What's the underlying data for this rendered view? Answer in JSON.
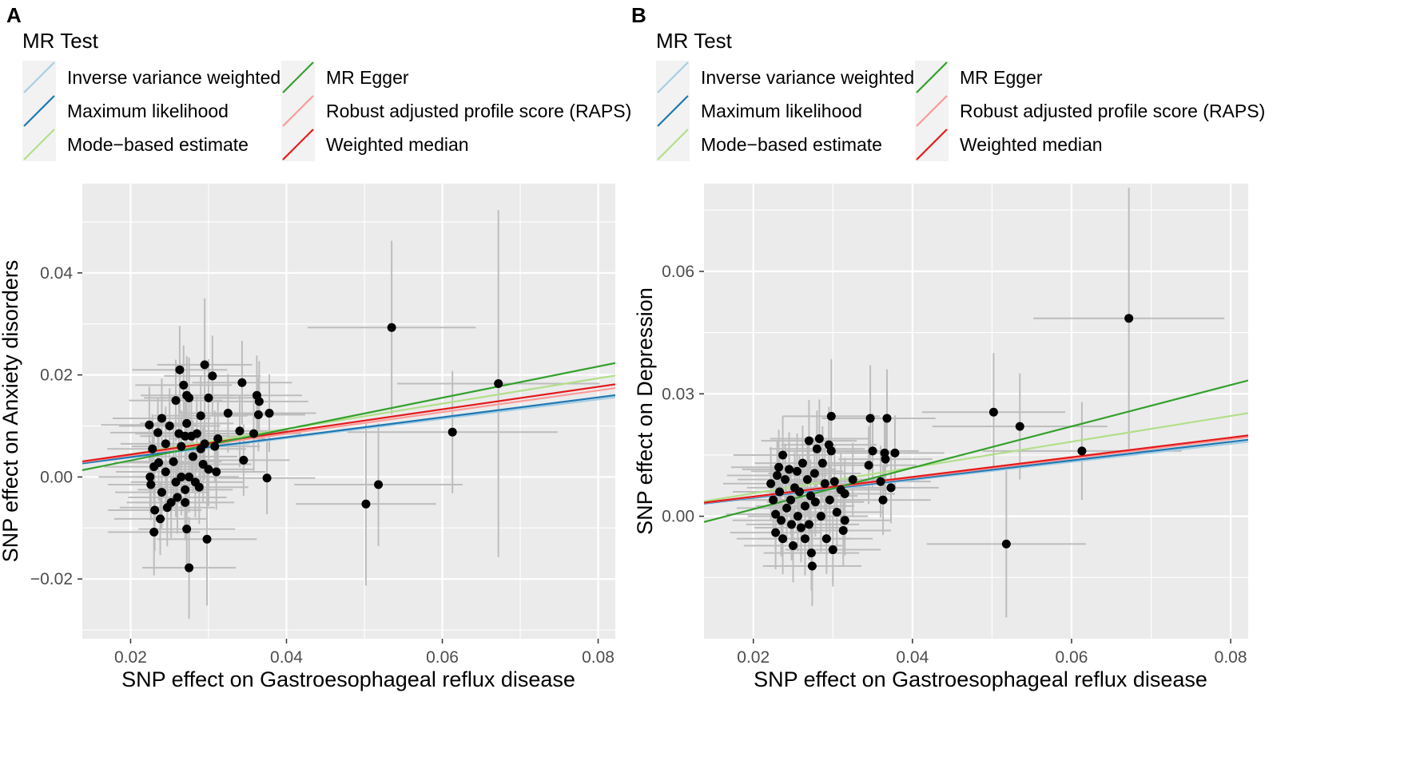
{
  "legend": {
    "title": "MR Test",
    "items": [
      {
        "label": "Inverse variance weighted",
        "color": "#a6cee3"
      },
      {
        "label": "Maximum likelihood",
        "color": "#1f78b4"
      },
      {
        "label": "Mode−based estimate",
        "color": "#b2df8a"
      },
      {
        "label": "MR Egger",
        "color": "#33a02c"
      },
      {
        "label": "Robust adjusted profile score (RAPS)",
        "color": "#fb9a99"
      },
      {
        "label": "Weighted median",
        "color": "#e31a1c"
      }
    ]
  },
  "colors": {
    "panel_bg": "#ebebeb",
    "grid": "#ffffff",
    "errorbar": "#bdbdbd",
    "point": "#000000"
  },
  "chart_data": [
    {
      "type": "scatter",
      "panel_label": "A",
      "xlabel": "SNP effect on Gastroesophageal reflux disease",
      "ylabel": "SNP effect on Anxiety disorders",
      "xlim": [
        0.0138,
        0.0822
      ],
      "ylim": [
        -0.0317,
        0.0575
      ],
      "xticks": [
        0.02,
        0.04,
        0.06,
        0.08
      ],
      "xtick_labels": [
        "0.02",
        "0.04",
        "0.06",
        "0.08"
      ],
      "yticks": [
        -0.02,
        0.0,
        0.02,
        0.04
      ],
      "ytick_labels": [
        "−0.02",
        "0.00",
        "0.02",
        "0.04"
      ],
      "lines": [
        {
          "method": "Inverse variance weighted",
          "slope": 0.19,
          "intercept": 0.0
        },
        {
          "method": "Maximum likelihood",
          "slope": 0.195,
          "intercept": 0.0
        },
        {
          "method": "Mode−based estimate",
          "slope": 0.248,
          "intercept": -0.0005
        },
        {
          "method": "MR Egger",
          "slope": 0.307,
          "intercept": -0.0029
        },
        {
          "method": "Robust adjusted profile score (RAPS)",
          "slope": 0.212,
          "intercept": 0.0
        },
        {
          "method": "Weighted median",
          "slope": 0.221,
          "intercept": 0.0
        }
      ],
      "points": [
        {
          "x": 0.0224,
          "y": 0.0102,
          "xse": 0.0062,
          "yse": 0.0075
        },
        {
          "x": 0.0228,
          "y": 0.0055,
          "xse": 0.0058,
          "yse": 0.0068
        },
        {
          "x": 0.023,
          "y": 0.002,
          "xse": 0.0064,
          "yse": 0.0072
        },
        {
          "x": 0.0226,
          "y": -0.0015,
          "xse": 0.0055,
          "yse": 0.007
        },
        {
          "x": 0.0231,
          "y": -0.0065,
          "xse": 0.006,
          "yse": 0.008
        },
        {
          "x": 0.023,
          "y": -0.0108,
          "xse": 0.0059,
          "yse": 0.0085
        },
        {
          "x": 0.0225,
          "y": 0.0,
          "xse": 0.0066,
          "yse": 0.0071
        },
        {
          "x": 0.0235,
          "y": 0.0087,
          "xse": 0.0061,
          "yse": 0.0069
        },
        {
          "x": 0.0236,
          "y": 0.0028,
          "xse": 0.0057,
          "yse": 0.0074
        },
        {
          "x": 0.024,
          "y": 0.0115,
          "xse": 0.0063,
          "yse": 0.0078
        },
        {
          "x": 0.024,
          "y": -0.003,
          "xse": 0.006,
          "yse": 0.007
        },
        {
          "x": 0.0245,
          "y": 0.0065,
          "xse": 0.0058,
          "yse": 0.0073
        },
        {
          "x": 0.0245,
          "y": 0.001,
          "xse": 0.0064,
          "yse": 0.0069
        },
        {
          "x": 0.0247,
          "y": -0.006,
          "xse": 0.0061,
          "yse": 0.0076
        },
        {
          "x": 0.0238,
          "y": -0.0082,
          "xse": 0.0059,
          "yse": 0.0071
        },
        {
          "x": 0.025,
          "y": 0.01,
          "xse": 0.0065,
          "yse": 0.0074
        },
        {
          "x": 0.0252,
          "y": -0.005,
          "xse": 0.0057,
          "yse": 0.007
        },
        {
          "x": 0.0255,
          "y": 0.003,
          "xse": 0.0062,
          "yse": 0.0072
        },
        {
          "x": 0.0258,
          "y": 0.015,
          "xse": 0.006,
          "yse": 0.008
        },
        {
          "x": 0.0258,
          "y": -0.001,
          "xse": 0.0058,
          "yse": 0.0068
        },
        {
          "x": 0.026,
          "y": -0.004,
          "xse": 0.0063,
          "yse": 0.0071
        },
        {
          "x": 0.0263,
          "y": 0.021,
          "xse": 0.0061,
          "yse": 0.0086
        },
        {
          "x": 0.0262,
          "y": 0.0085,
          "xse": 0.0056,
          "yse": 0.0073
        },
        {
          "x": 0.0265,
          "y": 0.006,
          "xse": 0.0064,
          "yse": 0.007
        },
        {
          "x": 0.0265,
          "y": 0.0,
          "xse": 0.006,
          "yse": 0.0075
        },
        {
          "x": 0.0268,
          "y": 0.018,
          "xse": 0.0062,
          "yse": 0.0078
        },
        {
          "x": 0.027,
          "y": 0.008,
          "xse": 0.0058,
          "yse": 0.007
        },
        {
          "x": 0.027,
          "y": -0.0025,
          "xse": 0.0061,
          "yse": 0.0072
        },
        {
          "x": 0.027,
          "y": -0.005,
          "xse": 0.0063,
          "yse": 0.0074
        },
        {
          "x": 0.0272,
          "y": 0.016,
          "xse": 0.0059,
          "yse": 0.0077
        },
        {
          "x": 0.0272,
          "y": 0.0105,
          "xse": 0.006,
          "yse": 0.0072
        },
        {
          "x": 0.0272,
          "y": -0.0102,
          "xse": 0.0062,
          "yse": 0.0081
        },
        {
          "x": 0.0275,
          "y": 0.0155,
          "xse": 0.0058,
          "yse": 0.0079
        },
        {
          "x": 0.0275,
          "y": 0.0,
          "xse": 0.0064,
          "yse": 0.007
        },
        {
          "x": 0.0275,
          "y": -0.0178,
          "xse": 0.006,
          "yse": 0.01
        },
        {
          "x": 0.0278,
          "y": 0.008,
          "xse": 0.0061,
          "yse": 0.0073
        },
        {
          "x": 0.028,
          "y": 0.004,
          "xse": 0.0057,
          "yse": 0.0071
        },
        {
          "x": 0.0283,
          "y": -0.001,
          "xse": 0.0062,
          "yse": 0.0069
        },
        {
          "x": 0.0285,
          "y": 0.0085,
          "xse": 0.0059,
          "yse": 0.0075
        },
        {
          "x": 0.0288,
          "y": -0.002,
          "xse": 0.0063,
          "yse": 0.0072
        },
        {
          "x": 0.029,
          "y": 0.012,
          "xse": 0.006,
          "yse": 0.0078
        },
        {
          "x": 0.029,
          "y": 0.0055,
          "xse": 0.0058,
          "yse": 0.007
        },
        {
          "x": 0.0293,
          "y": 0.0025,
          "xse": 0.0062,
          "yse": 0.0073
        },
        {
          "x": 0.0295,
          "y": 0.022,
          "xse": 0.0061,
          "yse": 0.013
        },
        {
          "x": 0.0295,
          "y": 0.0065,
          "xse": 0.0057,
          "yse": 0.0071
        },
        {
          "x": 0.0298,
          "y": -0.0122,
          "xse": 0.0064,
          "yse": 0.013
        },
        {
          "x": 0.03,
          "y": 0.0155,
          "xse": 0.006,
          "yse": 0.0076
        },
        {
          "x": 0.03,
          "y": 0.0015,
          "xse": 0.0059,
          "yse": 0.0072
        },
        {
          "x": 0.0305,
          "y": 0.0198,
          "xse": 0.0062,
          "yse": 0.0079
        },
        {
          "x": 0.0308,
          "y": 0.006,
          "xse": 0.0058,
          "yse": 0.007
        },
        {
          "x": 0.031,
          "y": 0.001,
          "xse": 0.0063,
          "yse": 0.0074
        },
        {
          "x": 0.0312,
          "y": 0.0075,
          "xse": 0.0061,
          "yse": 0.0072
        },
        {
          "x": 0.0325,
          "y": 0.0125,
          "xse": 0.006,
          "yse": 0.0077
        },
        {
          "x": 0.034,
          "y": 0.009,
          "xse": 0.0062,
          "yse": 0.0071
        },
        {
          "x": 0.0343,
          "y": 0.0185,
          "xse": 0.0064,
          "yse": 0.0082
        },
        {
          "x": 0.0345,
          "y": 0.0033,
          "xse": 0.0059,
          "yse": 0.007
        },
        {
          "x": 0.0358,
          "y": 0.0085,
          "xse": 0.0061,
          "yse": 0.0073
        },
        {
          "x": 0.0362,
          "y": 0.016,
          "xse": 0.0058,
          "yse": 0.0078
        },
        {
          "x": 0.0364,
          "y": 0.0122,
          "xse": 0.006,
          "yse": 0.0072
        },
        {
          "x": 0.0365,
          "y": 0.0148,
          "xse": 0.0063,
          "yse": 0.0079
        },
        {
          "x": 0.0375,
          "y": -0.0002,
          "xse": 0.0062,
          "yse": 0.0071
        },
        {
          "x": 0.0378,
          "y": 0.0125,
          "xse": 0.006,
          "yse": 0.0076
        },
        {
          "x": 0.0502,
          "y": -0.0053,
          "xse": 0.009,
          "yse": 0.016
        },
        {
          "x": 0.0518,
          "y": -0.0015,
          "xse": 0.0108,
          "yse": 0.012
        },
        {
          "x": 0.0535,
          "y": 0.0293,
          "xse": 0.0108,
          "yse": 0.017
        },
        {
          "x": 0.0613,
          "y": 0.0088,
          "xse": 0.0135,
          "yse": 0.012
        },
        {
          "x": 0.0672,
          "y": 0.0183,
          "xse": 0.013,
          "yse": 0.034
        }
      ]
    },
    {
      "type": "scatter",
      "panel_label": "B",
      "xlabel": "SNP effect on Gastroesophageal reflux disease",
      "ylabel": "SNP effect on Depression",
      "xlim": [
        0.0138,
        0.0822
      ],
      "ylim": [
        -0.03,
        0.0815
      ],
      "xticks": [
        0.02,
        0.04,
        0.06,
        0.08
      ],
      "xtick_labels": [
        "0.02",
        "0.04",
        "0.06",
        "0.08"
      ],
      "yticks": [
        0.0,
        0.03,
        0.06
      ],
      "ytick_labels": [
        "0.00",
        "0.03",
        "0.06"
      ],
      "lines": [
        {
          "method": "Inverse variance weighted",
          "slope": 0.222,
          "intercept": 0.0
        },
        {
          "method": "Maximum likelihood",
          "slope": 0.228,
          "intercept": 0.0
        },
        {
          "method": "Mode−based estimate",
          "slope": 0.316,
          "intercept": -0.0007
        },
        {
          "method": "MR Egger",
          "slope": 0.507,
          "intercept": -0.0084
        },
        {
          "method": "Robust adjusted profile score (RAPS)",
          "slope": 0.236,
          "intercept": 0.0
        },
        {
          "method": "Weighted median",
          "slope": 0.241,
          "intercept": 0.0
        }
      ],
      "points": [
        {
          "x": 0.0222,
          "y": 0.008,
          "xse": 0.006,
          "yse": 0.009
        },
        {
          "x": 0.0225,
          "y": 0.004,
          "xse": 0.0058,
          "yse": 0.0085
        },
        {
          "x": 0.0228,
          "y": 0.0005,
          "xse": 0.0062,
          "yse": 0.0088
        },
        {
          "x": 0.0228,
          "y": -0.004,
          "xse": 0.0057,
          "yse": 0.009
        },
        {
          "x": 0.023,
          "y": 0.01,
          "xse": 0.0063,
          "yse": 0.0086
        },
        {
          "x": 0.0232,
          "y": 0.012,
          "xse": 0.006,
          "yse": 0.0092
        },
        {
          "x": 0.0233,
          "y": 0.006,
          "xse": 0.0059,
          "yse": 0.0084
        },
        {
          "x": 0.0235,
          "y": -0.001,
          "xse": 0.0061,
          "yse": 0.0089
        },
        {
          "x": 0.0237,
          "y": 0.015,
          "xse": 0.0062,
          "yse": 0.0095
        },
        {
          "x": 0.0237,
          "y": -0.0055,
          "xse": 0.0058,
          "yse": 0.0087
        },
        {
          "x": 0.024,
          "y": 0.009,
          "xse": 0.006,
          "yse": 0.0088
        },
        {
          "x": 0.0242,
          "y": 0.002,
          "xse": 0.0063,
          "yse": 0.0086
        },
        {
          "x": 0.0245,
          "y": 0.0115,
          "xse": 0.0059,
          "yse": 0.0091
        },
        {
          "x": 0.0247,
          "y": 0.004,
          "xse": 0.0061,
          "yse": 0.0085
        },
        {
          "x": 0.0248,
          "y": -0.002,
          "xse": 0.0057,
          "yse": 0.0088
        },
        {
          "x": 0.025,
          "y": -0.0072,
          "xse": 0.0062,
          "yse": 0.009
        },
        {
          "x": 0.0252,
          "y": 0.007,
          "xse": 0.006,
          "yse": 0.0087
        },
        {
          "x": 0.0255,
          "y": 0.011,
          "xse": 0.0058,
          "yse": 0.0093
        },
        {
          "x": 0.0256,
          "y": 0.0,
          "xse": 0.0063,
          "yse": 0.0086
        },
        {
          "x": 0.0258,
          "y": 0.006,
          "xse": 0.0061,
          "yse": 0.0088
        },
        {
          "x": 0.026,
          "y": -0.0028,
          "xse": 0.0059,
          "yse": 0.0085
        },
        {
          "x": 0.0262,
          "y": 0.013,
          "xse": 0.006,
          "yse": 0.0092
        },
        {
          "x": 0.0265,
          "y": 0.0025,
          "xse": 0.0062,
          "yse": 0.0087
        },
        {
          "x": 0.0265,
          "y": -0.0055,
          "xse": 0.0058,
          "yse": 0.009
        },
        {
          "x": 0.0268,
          "y": 0.009,
          "xse": 0.0061,
          "yse": 0.0088
        },
        {
          "x": 0.027,
          "y": 0.0185,
          "xse": 0.006,
          "yse": 0.01
        },
        {
          "x": 0.027,
          "y": -0.002,
          "xse": 0.0063,
          "yse": 0.0086
        },
        {
          "x": 0.0272,
          "y": 0.005,
          "xse": 0.0059,
          "yse": 0.0089
        },
        {
          "x": 0.0273,
          "y": -0.009,
          "xse": 0.006,
          "yse": 0.0092
        },
        {
          "x": 0.0274,
          "y": -0.0122,
          "xse": 0.0062,
          "yse": 0.0098
        },
        {
          "x": 0.0277,
          "y": 0.0105,
          "xse": 0.0058,
          "yse": 0.0087
        },
        {
          "x": 0.0278,
          "y": 0.0035,
          "xse": 0.0061,
          "yse": 0.0085
        },
        {
          "x": 0.028,
          "y": 0.0165,
          "xse": 0.006,
          "yse": 0.0094
        },
        {
          "x": 0.0283,
          "y": 0.019,
          "xse": 0.0062,
          "yse": 0.0096
        },
        {
          "x": 0.0285,
          "y": 0.0,
          "xse": 0.0059,
          "yse": 0.0087
        },
        {
          "x": 0.0287,
          "y": 0.013,
          "xse": 0.0061,
          "yse": 0.009
        },
        {
          "x": 0.029,
          "y": 0.008,
          "xse": 0.0063,
          "yse": 0.0088
        },
        {
          "x": 0.0292,
          "y": -0.0055,
          "xse": 0.0058,
          "yse": 0.0086
        },
        {
          "x": 0.0295,
          "y": 0.0175,
          "xse": 0.006,
          "yse": 0.0093
        },
        {
          "x": 0.0296,
          "y": 0.004,
          "xse": 0.0062,
          "yse": 0.0085
        },
        {
          "x": 0.0298,
          "y": 0.0245,
          "xse": 0.0061,
          "yse": 0.014
        },
        {
          "x": 0.0298,
          "y": 0.016,
          "xse": 0.0059,
          "yse": 0.0091
        },
        {
          "x": 0.03,
          "y": -0.0082,
          "xse": 0.006,
          "yse": 0.009
        },
        {
          "x": 0.0302,
          "y": 0.0085,
          "xse": 0.0062,
          "yse": 0.0088
        },
        {
          "x": 0.0305,
          "y": 0.001,
          "xse": 0.0058,
          "yse": 0.0086
        },
        {
          "x": 0.031,
          "y": 0.0065,
          "xse": 0.0061,
          "yse": 0.0089
        },
        {
          "x": 0.0313,
          "y": -0.0035,
          "xse": 0.006,
          "yse": 0.0087
        },
        {
          "x": 0.0315,
          "y": 0.0055,
          "xse": 0.0063,
          "yse": 0.0088
        },
        {
          "x": 0.0315,
          "y": -0.001,
          "xse": 0.0059,
          "yse": 0.0086
        },
        {
          "x": 0.0325,
          "y": 0.009,
          "xse": 0.0062,
          "yse": 0.009
        },
        {
          "x": 0.0345,
          "y": 0.0125,
          "xse": 0.006,
          "yse": 0.0095
        },
        {
          "x": 0.0347,
          "y": 0.024,
          "xse": 0.0061,
          "yse": 0.013
        },
        {
          "x": 0.035,
          "y": 0.016,
          "xse": 0.0058,
          "yse": 0.0092
        },
        {
          "x": 0.036,
          "y": 0.0085,
          "xse": 0.0063,
          "yse": 0.0088
        },
        {
          "x": 0.0363,
          "y": 0.004,
          "xse": 0.006,
          "yse": 0.0086
        },
        {
          "x": 0.0365,
          "y": 0.0155,
          "xse": 0.0062,
          "yse": 0.0094
        },
        {
          "x": 0.0366,
          "y": 0.014,
          "xse": 0.0059,
          "yse": 0.0091
        },
        {
          "x": 0.0368,
          "y": 0.024,
          "xse": 0.0061,
          "yse": 0.012
        },
        {
          "x": 0.0373,
          "y": 0.007,
          "xse": 0.006,
          "yse": 0.0087
        },
        {
          "x": 0.0378,
          "y": 0.0155,
          "xse": 0.0062,
          "yse": 0.0092
        },
        {
          "x": 0.0502,
          "y": 0.0255,
          "xse": 0.009,
          "yse": 0.0145
        },
        {
          "x": 0.0518,
          "y": -0.0068,
          "xse": 0.01,
          "yse": 0.018
        },
        {
          "x": 0.0535,
          "y": 0.022,
          "xse": 0.011,
          "yse": 0.013
        },
        {
          "x": 0.0613,
          "y": 0.016,
          "xse": 0.0125,
          "yse": 0.012
        },
        {
          "x": 0.0672,
          "y": 0.0485,
          "xse": 0.012,
          "yse": 0.032
        }
      ]
    }
  ]
}
